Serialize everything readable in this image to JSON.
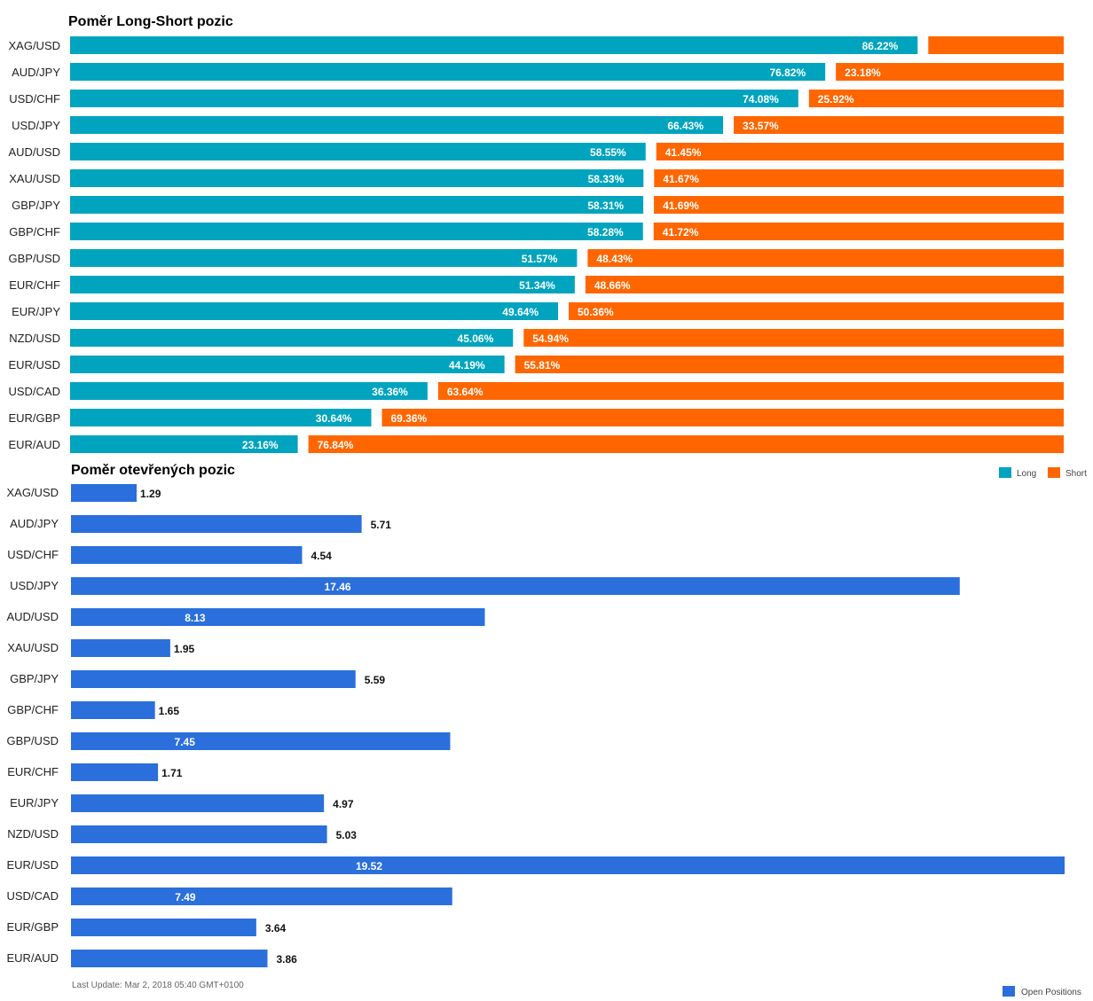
{
  "chart_data": [
    {
      "type": "bar",
      "orientation": "horizontal",
      "stacked": true,
      "title": "Poměr Long-Short pozic",
      "categories": [
        "XAG/USD",
        "AUD/JPY",
        "USD/CHF",
        "USD/JPY",
        "AUD/USD",
        "XAU/USD",
        "GBP/JPY",
        "GBP/CHF",
        "GBP/USD",
        "EUR/CHF",
        "EUR/JPY",
        "NZD/USD",
        "EUR/USD",
        "USD/CAD",
        "EUR/GBP",
        "EUR/AUD"
      ],
      "series": [
        {
          "name": "Long",
          "color": "#00a4be",
          "values": [
            86.22,
            76.82,
            74.08,
            66.43,
            58.55,
            58.33,
            58.31,
            58.28,
            51.57,
            51.34,
            49.64,
            45.06,
            44.19,
            36.36,
            30.64,
            23.16
          ],
          "labels": [
            "86.22%",
            "76.82%",
            "74.08%",
            "66.43%",
            "58.55%",
            "58.33%",
            "58.31%",
            "58.28%",
            "51.57%",
            "51.34%",
            "49.64%",
            "45.06%",
            "44.19%",
            "36.36%",
            "30.64%",
            "23.16%"
          ]
        },
        {
          "name": "Short",
          "color": "#ff6600",
          "values": [
            13.78,
            23.18,
            25.92,
            33.57,
            41.45,
            41.67,
            41.69,
            41.72,
            48.43,
            48.66,
            50.36,
            54.94,
            55.81,
            63.64,
            69.36,
            76.84
          ],
          "labels": [
            "",
            "23.18%",
            "25.92%",
            "33.57%",
            "41.45%",
            "41.67%",
            "41.69%",
            "41.72%",
            "48.43%",
            "48.66%",
            "50.36%",
            "54.94%",
            "55.81%",
            "63.64%",
            "69.36%",
            "76.84%"
          ]
        }
      ],
      "legend": "bottom-right"
    },
    {
      "type": "bar",
      "orientation": "horizontal",
      "title": "Poměr otevřených pozic",
      "categories": [
        "XAG/USD",
        "AUD/JPY",
        "USD/CHF",
        "USD/JPY",
        "AUD/USD",
        "XAU/USD",
        "GBP/JPY",
        "GBP/CHF",
        "GBP/USD",
        "EUR/CHF",
        "EUR/JPY",
        "NZD/USD",
        "EUR/USD",
        "USD/CAD",
        "EUR/GBP",
        "EUR/AUD"
      ],
      "series": [
        {
          "name": "Open Positions",
          "color": "#2a6fdb",
          "values": [
            1.29,
            5.71,
            4.54,
            17.46,
            8.13,
            1.95,
            5.59,
            1.65,
            7.45,
            1.71,
            4.97,
            5.03,
            19.52,
            7.49,
            3.64,
            3.86
          ],
          "labels": [
            "1.29",
            "5.71",
            "4.54",
            "17.46",
            "8.13",
            "1.95",
            "5.59",
            "1.65",
            "7.45",
            "1.71",
            "4.97",
            "5.03",
            "19.52",
            "7.49",
            "3.64",
            "3.86"
          ]
        }
      ],
      "legend": "bottom-right"
    }
  ],
  "footer": {
    "last_update": "Last Update: Mar 2, 2018 05:40 GMT+0100"
  }
}
